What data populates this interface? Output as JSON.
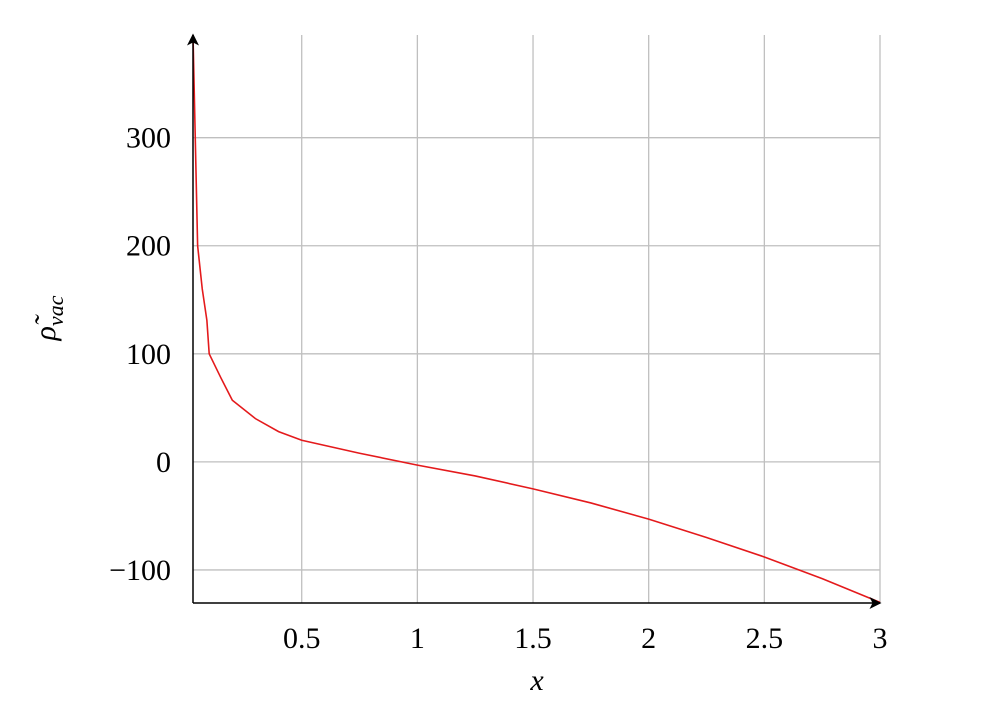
{
  "chart_data": {
    "type": "line",
    "xlabel": "x",
    "ylabel": [
      "ρ̃",
      "vac"
    ],
    "x": [
      0.03,
      0.05,
      0.07,
      0.09,
      0.1,
      0.15,
      0.2,
      0.3,
      0.4,
      0.5,
      0.75,
      1,
      1.25,
      1.5,
      1.75,
      2,
      2.25,
      2.5,
      2.75,
      3
    ],
    "series": [
      {
        "color": "#e41a1c",
        "values": [
          395,
          200,
          160,
          131,
          100,
          78,
          57,
          40,
          28,
          20,
          8,
          -3,
          -13,
          -25,
          -38,
          -53,
          -70,
          -88,
          -108,
          -130
        ]
      }
    ],
    "xlim": [
      0.03,
      3
    ],
    "ylim": [
      -130.6,
      395
    ],
    "xticks": [
      0.5,
      1,
      1.5,
      2,
      2.5,
      3
    ],
    "yticks": [
      {
        "value": -100,
        "label": "−100"
      },
      0,
      100,
      200,
      300
    ],
    "grid": true
  }
}
